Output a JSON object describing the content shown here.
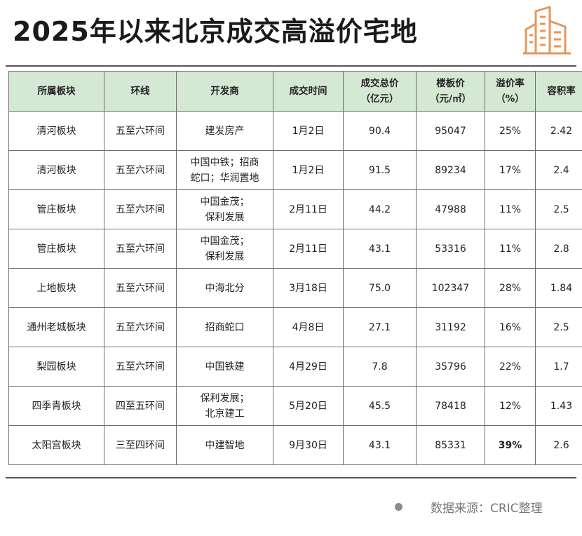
{
  "title": "2025年以来北京成交高溢价宅地",
  "logo_icon": "building-icon",
  "colors": {
    "header_bg": "#d5e8d4",
    "accent": "#e8955a",
    "highlight": "#e02020"
  },
  "table": {
    "headers": [
      "所属板块",
      "环线",
      "开发商",
      "成交时间",
      "成交总价\n（亿元）",
      "楼板价\n（元/㎡）",
      "溢价率\n（%）",
      "容积率"
    ],
    "rows": [
      [
        "清河板块",
        "五至六环间",
        "建发房产",
        "1月2日",
        "90.4",
        "95047",
        "25%",
        "2.42"
      ],
      [
        "清河板块",
        "五至六环间",
        "中国中铁；招商\n蛇口；华润置地",
        "1月2日",
        "91.5",
        "89234",
        "17%",
        "2.4"
      ],
      [
        "管庄板块",
        "五至六环间",
        "中国金茂；\n保利发展",
        "2月11日",
        "44.2",
        "47988",
        "11%",
        "2.5"
      ],
      [
        "管庄板块",
        "五至六环间",
        "中国金茂；\n保利发展",
        "2月11日",
        "43.1",
        "53316",
        "11%",
        "2.8"
      ],
      [
        "上地板块",
        "五至六环间",
        "中海北分",
        "3月18日",
        "75.0",
        "102347",
        "28%",
        "1.84"
      ],
      [
        "通州老城板块",
        "五至六环间",
        "招商蛇口",
        "4月8日",
        "27.1",
        "31192",
        "16%",
        "2.5"
      ],
      [
        "梨园板块",
        "五至六环间",
        "中国铁建",
        "4月29日",
        "7.8",
        "35796",
        "22%",
        "1.7"
      ],
      [
        "四季青板块",
        "四至五环间",
        "保利发展；\n北京建工",
        "5月20日",
        "45.5",
        "78418",
        "12%",
        "1.43"
      ],
      [
        "太阳宫板块",
        "三至四环间",
        "中建智地",
        "9月30日",
        "43.1",
        "85331",
        "39%",
        "2.6"
      ]
    ]
  },
  "footer": {
    "source": "数据来源：CRIC整理"
  }
}
